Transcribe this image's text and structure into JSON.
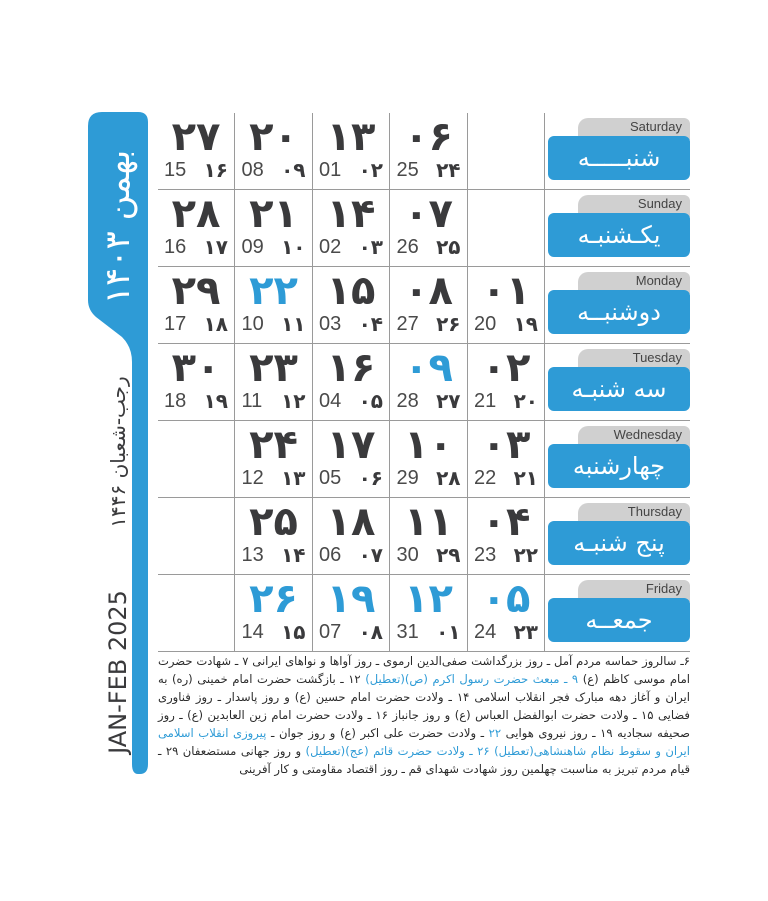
{
  "sidebar": {
    "month": "بهمن ۱۴۰۳",
    "hijri": "رجب-شعبان ۱۴۴۶",
    "gregorian": "JAN-FEB 2025",
    "accent": "#2e9bd6"
  },
  "days": [
    {
      "en": "Saturday",
      "fa": "شنبـــــه",
      "cells": [
        {
          "d": "۲۷",
          "g": "15",
          "h": "۱۶"
        },
        {
          "d": "۲۰",
          "g": "08",
          "h": "۰۹"
        },
        {
          "d": "۱۳",
          "g": "01",
          "h": "۰۲"
        },
        {
          "d": "۰۶",
          "g": "25",
          "h": "۲۴"
        },
        null
      ]
    },
    {
      "en": "Sunday",
      "fa": "یکـشنبـه",
      "cells": [
        {
          "d": "۲۸",
          "g": "16",
          "h": "۱۷"
        },
        {
          "d": "۲۱",
          "g": "09",
          "h": "۱۰"
        },
        {
          "d": "۱۴",
          "g": "02",
          "h": "۰۳"
        },
        {
          "d": "۰۷",
          "g": "26",
          "h": "۲۵"
        },
        null
      ]
    },
    {
      "en": "Monday",
      "fa": "دوشنبــه",
      "cells": [
        {
          "d": "۲۹",
          "g": "17",
          "h": "۱۸"
        },
        {
          "d": "۲۲",
          "g": "10",
          "h": "۱۱",
          "holiday": true
        },
        {
          "d": "۱۵",
          "g": "03",
          "h": "۰۴"
        },
        {
          "d": "۰۸",
          "g": "27",
          "h": "۲۶"
        },
        {
          "d": "۰۱",
          "g": "20",
          "h": "۱۹"
        }
      ]
    },
    {
      "en": "Tuesday",
      "fa": "سه شنبـه",
      "cells": [
        {
          "d": "۳۰",
          "g": "18",
          "h": "۱۹"
        },
        {
          "d": "۲۳",
          "g": "11",
          "h": "۱۲"
        },
        {
          "d": "۱۶",
          "g": "04",
          "h": "۰۵"
        },
        {
          "d": "۰۹",
          "g": "28",
          "h": "۲۷",
          "holiday": true
        },
        {
          "d": "۰۲",
          "g": "21",
          "h": "۲۰"
        }
      ]
    },
    {
      "en": "Wednesday",
      "fa": "چهارشنبه",
      "cells": [
        null,
        {
          "d": "۲۴",
          "g": "12",
          "h": "۱۳"
        },
        {
          "d": "۱۷",
          "g": "05",
          "h": "۰۶"
        },
        {
          "d": "۱۰",
          "g": "29",
          "h": "۲۸"
        },
        {
          "d": "۰۳",
          "g": "22",
          "h": "۲۱"
        }
      ]
    },
    {
      "en": "Thursday",
      "fa": "پنج شنبـه",
      "cells": [
        null,
        {
          "d": "۲۵",
          "g": "13",
          "h": "۱۴"
        },
        {
          "d": "۱۸",
          "g": "06",
          "h": "۰۷"
        },
        {
          "d": "۱۱",
          "g": "30",
          "h": "۲۹"
        },
        {
          "d": "۰۴",
          "g": "23",
          "h": "۲۲"
        }
      ]
    },
    {
      "en": "Friday",
      "fa": "جمعــه",
      "cells": [
        null,
        {
          "d": "۲۶",
          "g": "14",
          "h": "۱۵",
          "holiday": true
        },
        {
          "d": "۱۹",
          "g": "07",
          "h": "۰۸",
          "holiday": true
        },
        {
          "d": "۱۲",
          "g": "31",
          "h": "۰۱",
          "holiday": true
        },
        {
          "d": "۰۵",
          "g": "24",
          "h": "۲۳",
          "holiday": true
        }
      ]
    }
  ],
  "notes": [
    {
      "text": "۶ـ سالروز حماسه مردم آمل ـ روز بزرگداشت صفی‌الدین ارموی ـ روز آواها و نواهای ایرانی ۷ ـ شهادت حضرت امام موسی کاظم (ع) ",
      "hl": false
    },
    {
      "text": "۹ ـ مبعث حضرت رسول اکرم (ص)(تعطیل)",
      "hl": true
    },
    {
      "text": " ۱۲ ـ بازگشت حضرت امام خمینی (ره) به ایران و آغاز دهه مبارک فجر انقلاب اسلامی ۱۴ ـ ولادت حضرت امام حسین (ع) و روز پاسدار ـ روز فناوری فضایی ۱۵ ـ ولادت حضرت ابوالفضل العباس (ع) و روز جانباز ۱۶ ـ ولادت حضرت امام زین العابدین (ع) ـ روز صحیفه سجادیه ۱۹ ـ روز نیروی هوایی ",
      "hl": false
    },
    {
      "text": "۲۲",
      "hl": true
    },
    {
      "text": " ـ ولادت حضرت علی اکبر (ع) و روز جوان ـ ",
      "hl": false
    },
    {
      "text": "پیروزی انقلاب اسلامی ایران و سقوط نظام شاهنشاهی(تعطیل) ۲۶ ـ ولادت حضرت قائم (عج)(تعطیل)",
      "hl": true
    },
    {
      "text": " و روز جهانی مستضعفان ۲۹ ـ قیام مردم تبریز به مناسبت چهلمین روز شهادت شهدای قم ـ روز اقتصاد مقاومتی و کار آفرینی",
      "hl": false
    }
  ]
}
